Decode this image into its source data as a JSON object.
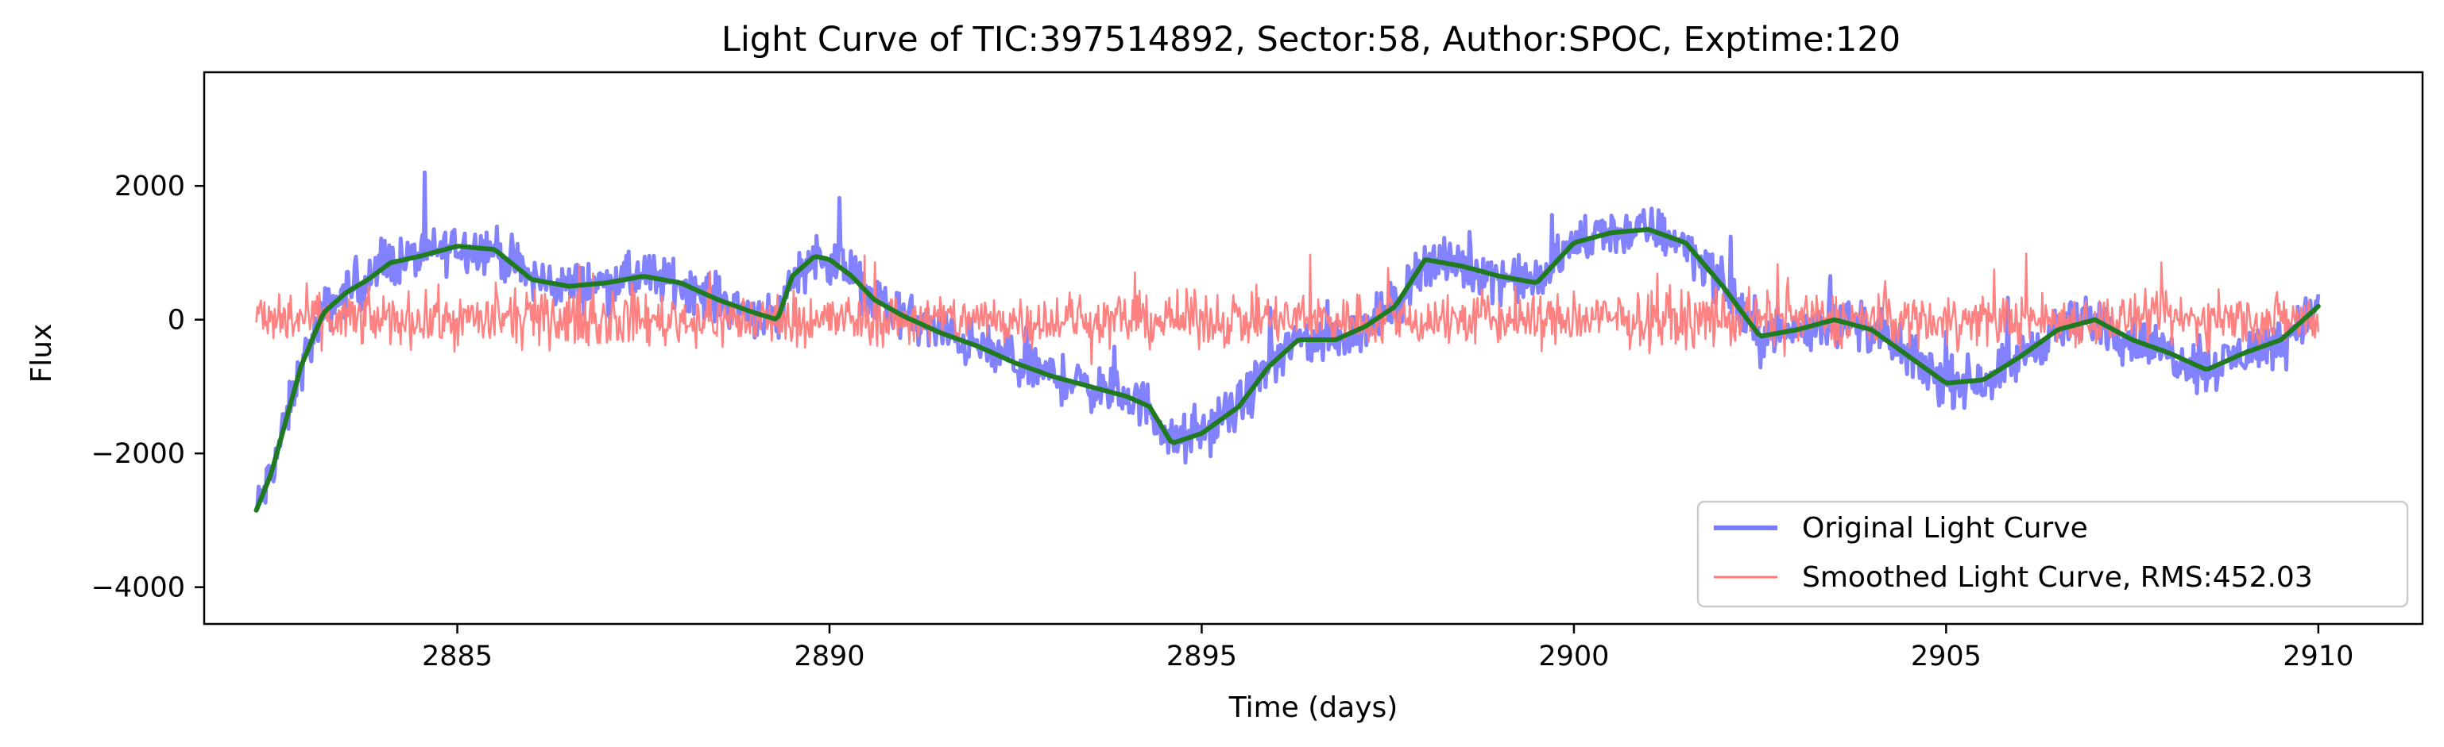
{
  "chart_data": {
    "type": "line",
    "title": "Light Curve of TIC:397514892, Sector:58, Author:SPOC, Exptime:120",
    "xlabel": "Time (days)",
    "ylabel": "Flux",
    "xlim": [
      2881.6,
      2911.4
    ],
    "ylim": [
      -4550,
      3700
    ],
    "xticks": [
      2885,
      2890,
      2895,
      2900,
      2905,
      2910
    ],
    "xtick_labels": [
      "2885",
      "2890",
      "2895",
      "2900",
      "2905",
      "2910"
    ],
    "yticks": [
      2000,
      0,
      -2000,
      -4000
    ],
    "ytick_labels": [
      "2000",
      "0",
      "−2000",
      "−4000"
    ],
    "grid": false,
    "legend_position": "bottom-right",
    "colors": {
      "original": "#7b7bff",
      "smoothed": "#ff7b7b",
      "trend": "#207a20"
    },
    "series": [
      {
        "name": "Original Light Curve",
        "style": "thick-line",
        "noise_amplitude": 520,
        "x": [
          2882.3,
          2882.5,
          2882.7,
          2882.9,
          2883.2,
          2883.5,
          2883.8,
          2884.1,
          2884.5,
          2885.0,
          2885.5,
          2886.0,
          2886.5,
          2887.0,
          2887.5,
          2888.0,
          2888.5,
          2889.0,
          2889.3,
          2889.5,
          2889.8,
          2890.0,
          2890.3,
          2890.6,
          2891.0,
          2891.5,
          2892.0,
          2892.5,
          2893.0,
          2893.5,
          2894.0,
          2894.3,
          2894.6,
          2895.0,
          2895.5,
          2895.9,
          2896.3,
          2896.8,
          2897.2,
          2897.6,
          2898.0,
          2898.5,
          2899.0,
          2899.5,
          2900.0,
          2900.5,
          2901.0,
          2901.5,
          2902.0,
          2902.5,
          2903.0,
          2903.5,
          2904.0,
          2904.5,
          2905.0,
          2905.5,
          2906.0,
          2906.5,
          2907.0,
          2907.5,
          2908.0,
          2908.5,
          2909.0,
          2909.5,
          2910.0
        ],
        "values": [
          -2850,
          -2300,
          -1500,
          -700,
          100,
          400,
          600,
          850,
          950,
          1100,
          1050,
          600,
          500,
          550,
          650,
          550,
          300,
          100,
          0,
          650,
          950,
          900,
          650,
          300,
          50,
          -200,
          -400,
          -650,
          -850,
          -1000,
          -1150,
          -1300,
          -1850,
          -1700,
          -1300,
          -700,
          -300,
          -300,
          -100,
          200,
          900,
          800,
          650,
          550,
          1150,
          1300,
          1350,
          1150,
          500,
          -250,
          -150,
          0,
          -150,
          -550,
          -950,
          -900,
          -550,
          -150,
          0,
          -300,
          -500,
          -750,
          -500,
          -300,
          200
        ]
      },
      {
        "name": "Smoothed Light Curve, RMS:452.03",
        "style": "thin-line",
        "noise_amplitude": 580,
        "x": [
          2882.3,
          2910.0
        ],
        "values": [
          0,
          0
        ]
      },
      {
        "name": "",
        "style": "trend-line",
        "noise_amplitude": 0,
        "x": [
          2882.3,
          2882.5,
          2882.7,
          2882.9,
          2883.2,
          2883.5,
          2883.8,
          2884.1,
          2884.5,
          2885.0,
          2885.5,
          2886.0,
          2886.5,
          2887.0,
          2887.5,
          2888.0,
          2888.5,
          2889.0,
          2889.3,
          2889.5,
          2889.8,
          2890.0,
          2890.3,
          2890.6,
          2891.0,
          2891.5,
          2892.0,
          2892.5,
          2893.0,
          2893.5,
          2894.0,
          2894.3,
          2894.6,
          2895.0,
          2895.5,
          2895.9,
          2896.3,
          2896.8,
          2897.2,
          2897.6,
          2898.0,
          2898.5,
          2899.0,
          2899.5,
          2900.0,
          2900.5,
          2901.0,
          2901.5,
          2902.0,
          2902.5,
          2903.0,
          2903.5,
          2904.0,
          2904.5,
          2905.0,
          2905.5,
          2906.0,
          2906.5,
          2907.0,
          2907.5,
          2908.0,
          2908.5,
          2909.0,
          2909.5,
          2910.0
        ],
        "values": [
          -2850,
          -2300,
          -1500,
          -700,
          100,
          400,
          600,
          850,
          950,
          1100,
          1050,
          600,
          500,
          550,
          650,
          550,
          300,
          100,
          0,
          650,
          950,
          900,
          650,
          300,
          50,
          -200,
          -400,
          -650,
          -850,
          -1000,
          -1150,
          -1300,
          -1850,
          -1700,
          -1300,
          -700,
          -300,
          -300,
          -100,
          200,
          900,
          800,
          650,
          550,
          1150,
          1300,
          1350,
          1150,
          500,
          -250,
          -150,
          0,
          -150,
          -550,
          -950,
          -900,
          -550,
          -150,
          0,
          -300,
          -500,
          -750,
          -500,
          -300,
          200
        ]
      }
    ]
  }
}
